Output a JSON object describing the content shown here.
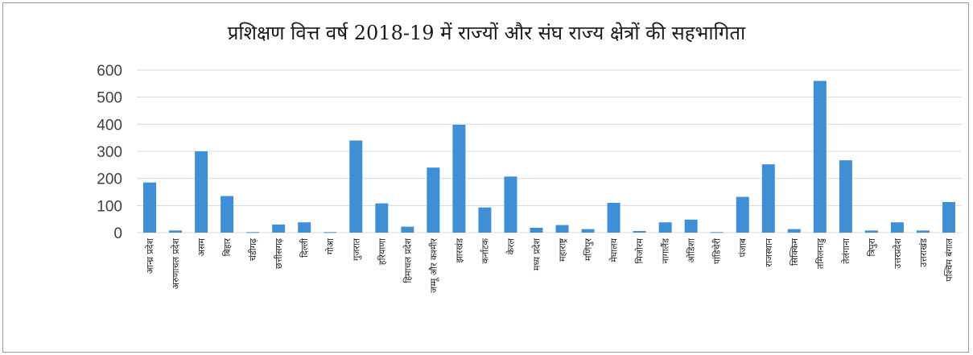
{
  "chart_data": {
    "type": "bar",
    "title": "प्रशिक्षण वित्त वर्ष 2018-19 में राज्यों और संघ राज्य क्षेत्रों की सहभागिता",
    "xlabel": "",
    "ylabel": "",
    "ylim": [
      0,
      600
    ],
    "yticks": [
      "0",
      "100",
      "200",
      "300",
      "400",
      "500",
      "600"
    ],
    "grid": true,
    "legend": "none",
    "bar_color": "#3f8fd6",
    "categories": [
      "आन्ध्र प्रदेश",
      "अरुणाचल प्रदेश",
      "असम",
      "बिहार",
      "चंडीगढ़",
      "छत्तीसगढ़",
      "दिल्ली",
      "गोआ",
      "गुजरात",
      "हरियाणा",
      "हिमाचल प्रदेश",
      "जम्मू और कश्मीर",
      "झारखंड",
      "कर्नाटक",
      "केरल",
      "मध्य प्रदेश",
      "महाराष्ट्र",
      "मणिपुर",
      "मेघालय",
      "मिजोरम",
      "नागालैंड",
      "ओडिशा",
      "पांडिचेरी",
      "पंजाब",
      "राजस्थान",
      "सिक्किम",
      "तमिलनाडु",
      "तेलंगाना",
      "त्रिपुरा",
      "उत्तरप्रदेश",
      "उत्तराखंड",
      "पश्चिम बंगाल"
    ],
    "values": [
      185,
      8,
      300,
      135,
      2,
      30,
      38,
      2,
      340,
      108,
      22,
      240,
      398,
      93,
      207,
      18,
      28,
      13,
      110,
      6,
      38,
      48,
      2,
      132,
      252,
      13,
      560,
      267,
      8,
      38,
      8,
      113
    ]
  }
}
